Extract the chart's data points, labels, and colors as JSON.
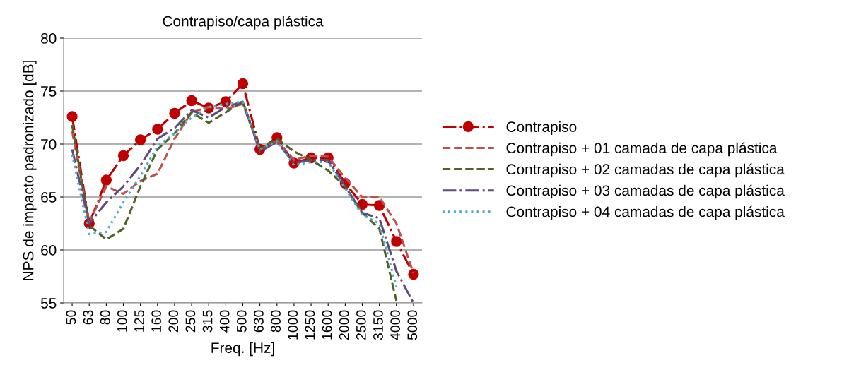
{
  "chart_data": {
    "type": "line",
    "title": "Contrapiso/capa plástica",
    "xlabel": "Freq. [Hz]",
    "ylabel": "NPS de impacto padronizado [dB]",
    "categories": [
      "50",
      "63",
      "80",
      "100",
      "125",
      "160",
      "200",
      "250",
      "315",
      "400",
      "500",
      "630",
      "800",
      "1000",
      "1250",
      "1600",
      "2000",
      "2500",
      "3150",
      "4000",
      "5000"
    ],
    "ylim": [
      55,
      80
    ],
    "yticks": [
      55,
      60,
      65,
      70,
      75,
      80
    ],
    "grid": "y",
    "legend": "right",
    "series": [
      {
        "name": "Contrapiso",
        "color": "#c00000",
        "marker": "circle",
        "line_style": "dashdot",
        "values": [
          72.6,
          62.5,
          66.6,
          68.9,
          70.4,
          71.4,
          72.9,
          74.1,
          73.4,
          74.0,
          75.7,
          69.5,
          70.6,
          68.2,
          68.7,
          68.7,
          66.3,
          64.3,
          64.2,
          60.8,
          57.7
        ]
      },
      {
        "name": "Contrapiso + 01 camada de capa plástica",
        "color": "#c0504d",
        "marker": "none",
        "line_style": "dashed",
        "values": [
          71.2,
          62.6,
          66.0,
          65.3,
          66.5,
          67.2,
          70.5,
          73.0,
          73.5,
          73.3,
          73.8,
          69.5,
          70.3,
          68.5,
          68.9,
          68.8,
          66.8,
          65.0,
          65.0,
          62.5,
          57.8
        ]
      },
      {
        "name": "Contrapiso + 02 camadas de capa plástica",
        "color": "#4f6228",
        "marker": "none",
        "line_style": "dashed",
        "values": [
          71.8,
          62.3,
          61.0,
          62.0,
          66.0,
          69.5,
          71.0,
          73.0,
          72.0,
          73.0,
          74.0,
          69.5,
          70.5,
          69.3,
          68.5,
          67.5,
          66.0,
          63.5,
          62.0,
          55.2,
          null
        ]
      },
      {
        "name": "Contrapiso + 03 camadas de capa plástica",
        "color": "#604a7b",
        "marker": "none",
        "line_style": "dashdot",
        "values": [
          69.5,
          62.5,
          64.5,
          66.0,
          68.0,
          70.5,
          71.5,
          73.2,
          72.5,
          73.5,
          74.0,
          69.3,
          70.2,
          68.2,
          68.5,
          68.5,
          66.0,
          63.5,
          63.0,
          58.0,
          55.0
        ]
      },
      {
        "name": "Contrapiso + 04 camadas de capa plástica",
        "color": "#4bacc6",
        "marker": "none",
        "line_style": "dotted",
        "values": [
          69.0,
          61.5,
          61.7,
          64.5,
          67.0,
          69.8,
          71.0,
          72.5,
          73.5,
          73.8,
          74.0,
          69.5,
          70.3,
          68.0,
          68.3,
          68.3,
          65.8,
          63.3,
          62.5,
          56.5,
          null
        ]
      }
    ]
  }
}
